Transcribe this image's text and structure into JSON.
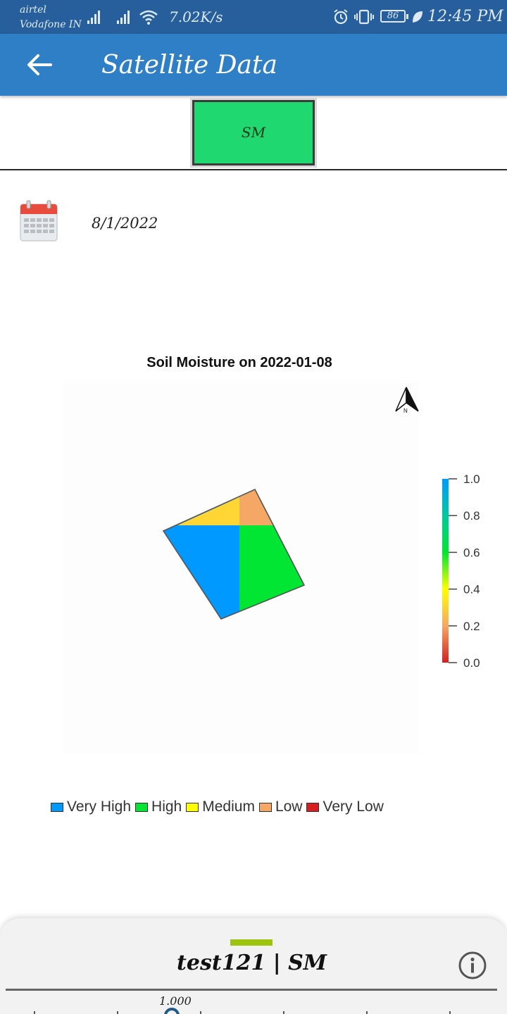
{
  "status_bar": {
    "carrier_1": "airtel",
    "carrier_2": "Vodafone IN",
    "net_speed": "7.02K/s",
    "battery": "86",
    "time": "12:45 PM"
  },
  "app_bar": {
    "title": "Satellite Data",
    "back_icon": "arrow-left-icon"
  },
  "layer_toggle": {
    "label": "SM",
    "color": "#1fd870"
  },
  "date_row": {
    "icon": "calendar-icon",
    "date": "8/1/2022"
  },
  "map": {
    "title": "Soil Moisture on 2022-01-08",
    "north_arrow": "north-arrow-icon",
    "north_label": "N",
    "colorbar_ticks": [
      "1.0",
      "0.8",
      "0.6",
      "0.4",
      "0.2",
      "0.0"
    ],
    "legend": [
      {
        "label": "Very High",
        "color": "#0099ff"
      },
      {
        "label": "High",
        "color": "#00e632"
      },
      {
        "label": "Medium",
        "color": "#ffff00"
      },
      {
        "label": "Low",
        "color": "#f5a866"
      },
      {
        "label": "Very Low",
        "color": "#d42020"
      }
    ]
  },
  "bottom_sheet": {
    "title": "test121  |  SM",
    "info_icon": "info-icon",
    "scale_value": "1.000"
  }
}
